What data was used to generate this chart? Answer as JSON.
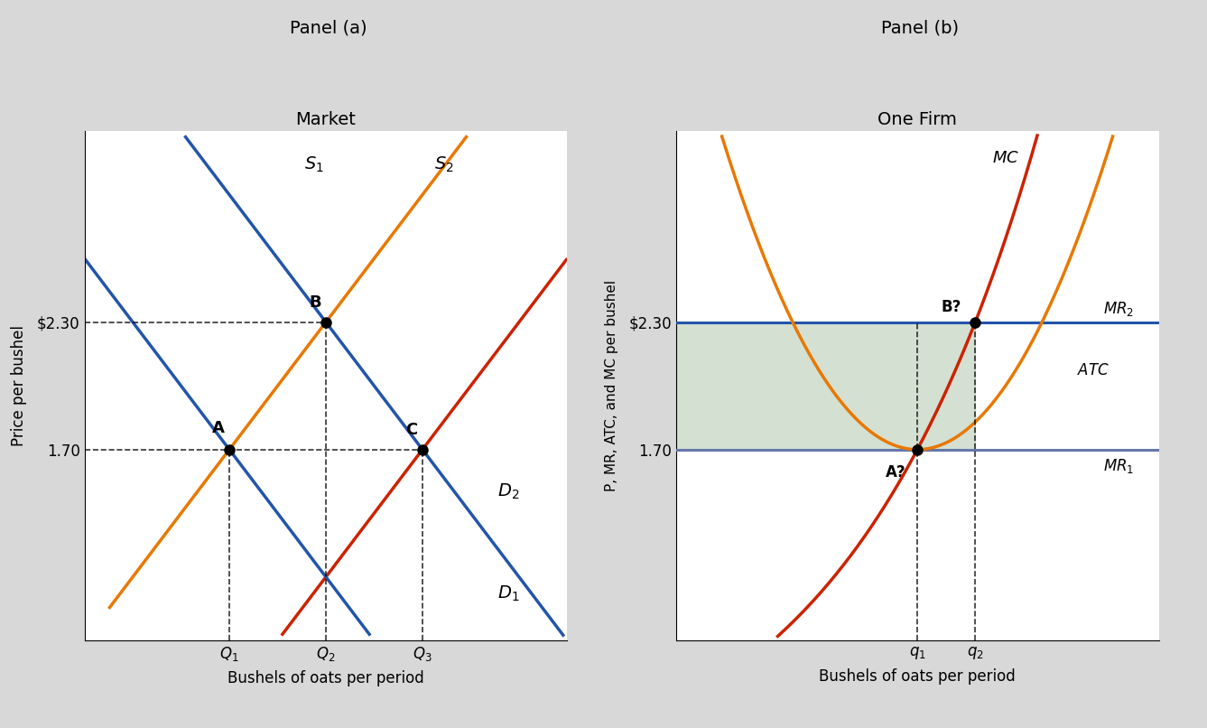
{
  "panel_a_title": "Panel (a)",
  "panel_a_subtitle": "Market",
  "panel_b_title": "Panel (b)",
  "panel_b_subtitle": "One Firm",
  "xlabel": "Bushels of oats per period",
  "panel_a_ylabel": "Price per bushel",
  "panel_b_ylabel": "P, MR, ATC, and MC per bushel",
  "price_high": 2.3,
  "price_low": 1.7,
  "price_high_label": "$2.30",
  "price_low_label": "1.70",
  "Q1": 3.0,
  "Q2": 5.0,
  "Q3": 7.0,
  "q1_firm": 5.0,
  "q2_firm": 6.2,
  "color_S1": "#E87800",
  "color_S2": "#CC2200",
  "color_D1": "#2255AA",
  "color_D2": "#2255AA",
  "color_MR1": "#6677AA",
  "color_MR2": "#2255AA",
  "color_MC": "#CC2200",
  "color_ATC": "#E87800",
  "color_shading": "#8FAF8A",
  "background_color": "#FFFFFF",
  "outer_background": "#D8D8D8"
}
